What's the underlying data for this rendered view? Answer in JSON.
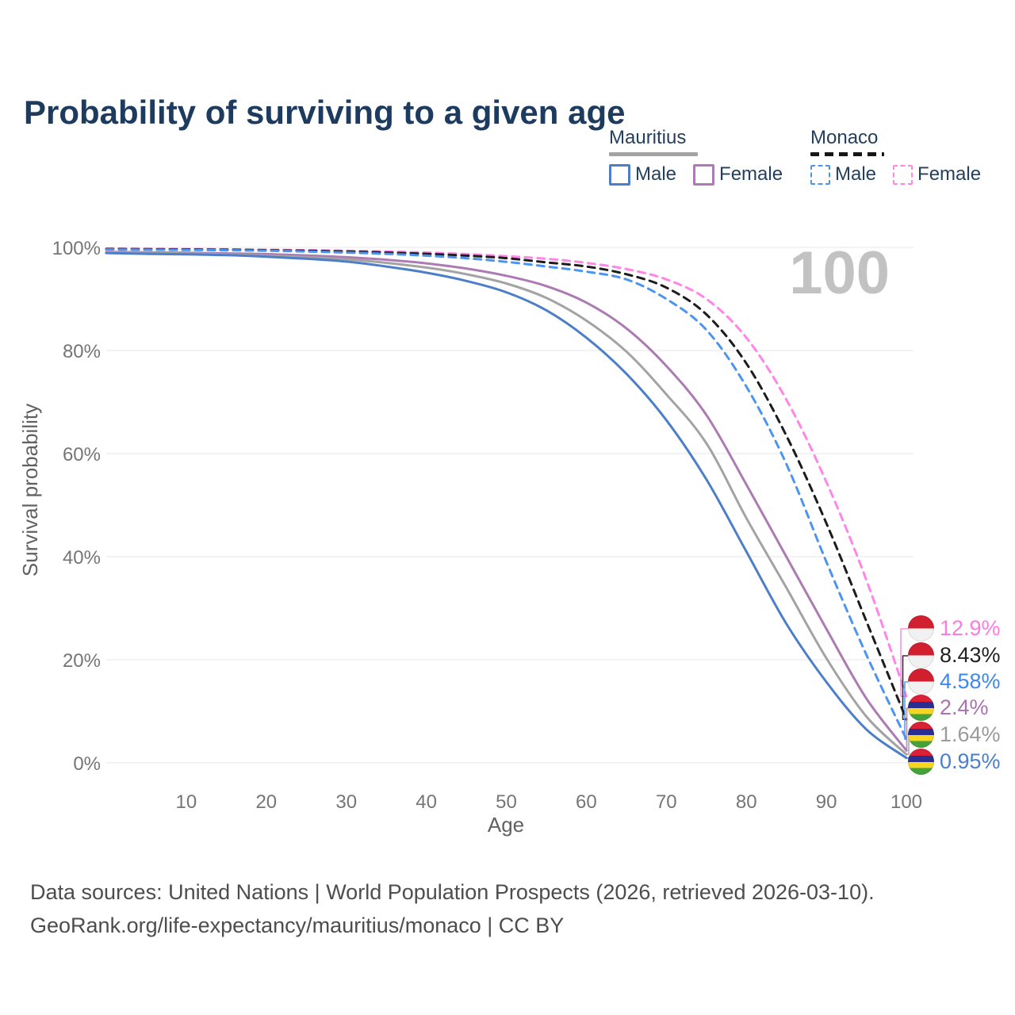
{
  "title": "Probability of surviving to a given age",
  "watermark_label": "100",
  "legend": {
    "groups": [
      {
        "name": "Mauritius",
        "line_style": "solid",
        "line_color": "#a3a3a3",
        "items": [
          {
            "label": "Male",
            "color": "#4d7ec9",
            "dashed": false
          },
          {
            "label": "Female",
            "color": "#ad7bb3",
            "dashed": false
          }
        ]
      },
      {
        "name": "Monaco",
        "line_style": "dashed",
        "line_color": "#161616",
        "items": [
          {
            "label": "Male",
            "color": "#4d94f0",
            "dashed": true
          },
          {
            "label": "Female",
            "color": "#ff85e6",
            "dashed": true
          }
        ]
      }
    ]
  },
  "chart_data": {
    "type": "line",
    "title": "Probability of surviving to a given age",
    "xlabel": "Age",
    "ylabel": "Survival probability",
    "xlim": [
      0,
      100
    ],
    "ylim": [
      0,
      100
    ],
    "x_ticks": [
      10,
      20,
      30,
      40,
      50,
      60,
      70,
      80,
      90,
      100
    ],
    "y_tick_values": [
      0,
      20,
      40,
      60,
      80,
      100
    ],
    "y_ticks": [
      "0%",
      "20%",
      "40%",
      "60%",
      "80%",
      "100%"
    ],
    "grid": "horizontal",
    "legend_position": "top-right",
    "hover_age_label": "100",
    "ages": [
      0,
      5,
      10,
      15,
      20,
      25,
      30,
      35,
      40,
      45,
      50,
      55,
      60,
      65,
      70,
      75,
      80,
      85,
      90,
      95,
      100
    ],
    "series": [
      {
        "name": "Monaco Female",
        "country": "Monaco",
        "sex": "Female",
        "color": "#ff85e6",
        "dash": true,
        "flag": "monaco",
        "end_label": "12.9%",
        "end_label_color": "#ff7ae0",
        "values": [
          99.75,
          99.7,
          99.68,
          99.63,
          99.55,
          99.45,
          99.35,
          99.2,
          99.0,
          98.7,
          98.3,
          97.8,
          97.0,
          95.8,
          93.8,
          90.0,
          82.5,
          70.5,
          54.5,
          35.5,
          12.9
        ]
      },
      {
        "name": "Monaco Both sexes",
        "country": "Monaco",
        "sex": "Both",
        "color": "#1c1c1c",
        "dash": true,
        "flag": "monaco",
        "end_label": "8.43%",
        "end_label_color": "#222222",
        "values": [
          99.7,
          99.65,
          99.6,
          99.55,
          99.45,
          99.35,
          99.2,
          99.0,
          98.75,
          98.4,
          97.9,
          97.1,
          96.3,
          94.8,
          92.2,
          87.0,
          77.5,
          63.5,
          46.5,
          27.5,
          8.43
        ]
      },
      {
        "name": "Monaco Male",
        "country": "Monaco",
        "sex": "Male",
        "color": "#4d94f0",
        "dash": true,
        "flag": "monaco",
        "end_label": "4.58%",
        "end_label_color": "#3d87ee",
        "values": [
          99.6,
          99.55,
          99.5,
          99.45,
          99.35,
          99.2,
          99.0,
          98.75,
          98.4,
          97.9,
          97.2,
          96.3,
          95.3,
          93.8,
          90.0,
          84.0,
          73.0,
          58.0,
          39.0,
          21.0,
          4.58
        ]
      },
      {
        "name": "Mauritius Female",
        "country": "Mauritius",
        "sex": "Female",
        "color": "#ad7bb3",
        "dash": false,
        "flag": "mauritius",
        "end_label": "2.4%",
        "end_label_color": "#a873ae",
        "values": [
          99.1,
          99.05,
          98.95,
          98.85,
          98.7,
          98.45,
          98.1,
          97.6,
          96.9,
          95.9,
          94.5,
          92.5,
          89.3,
          84.3,
          77.0,
          67.5,
          54.0,
          40.0,
          26.0,
          12.5,
          2.4
        ]
      },
      {
        "name": "Mauritius Both sexes",
        "country": "Mauritius",
        "sex": "Both",
        "color": "#a3a3a3",
        "dash": false,
        "flag": "mauritius",
        "end_label": "1.64%",
        "end_label_color": "#9b9b9b",
        "values": [
          99.0,
          98.9,
          98.8,
          98.65,
          98.4,
          98.1,
          97.7,
          97.0,
          96.1,
          94.8,
          93.0,
          90.2,
          85.8,
          79.8,
          71.5,
          62.0,
          47.5,
          34.0,
          20.3,
          9.0,
          1.64
        ]
      },
      {
        "name": "Mauritius Male",
        "country": "Mauritius",
        "sex": "Male",
        "color": "#4d7ec9",
        "dash": false,
        "flag": "mauritius",
        "end_label": "0.95%",
        "end_label_color": "#4d7ec9",
        "values": [
          98.9,
          98.75,
          98.65,
          98.5,
          98.2,
          97.8,
          97.25,
          96.3,
          95.1,
          93.5,
          91.3,
          87.8,
          82.5,
          75.5,
          66.5,
          55.0,
          41.0,
          27.0,
          15.7,
          6.5,
          0.95
        ]
      }
    ]
  },
  "footer": {
    "line1": "Data sources: United Nations | World Population Prospects (2026, retrieved 2026-03-10).",
    "line2": "GeoRank.org/life-expectancy/mauritius/monaco | CC BY"
  }
}
